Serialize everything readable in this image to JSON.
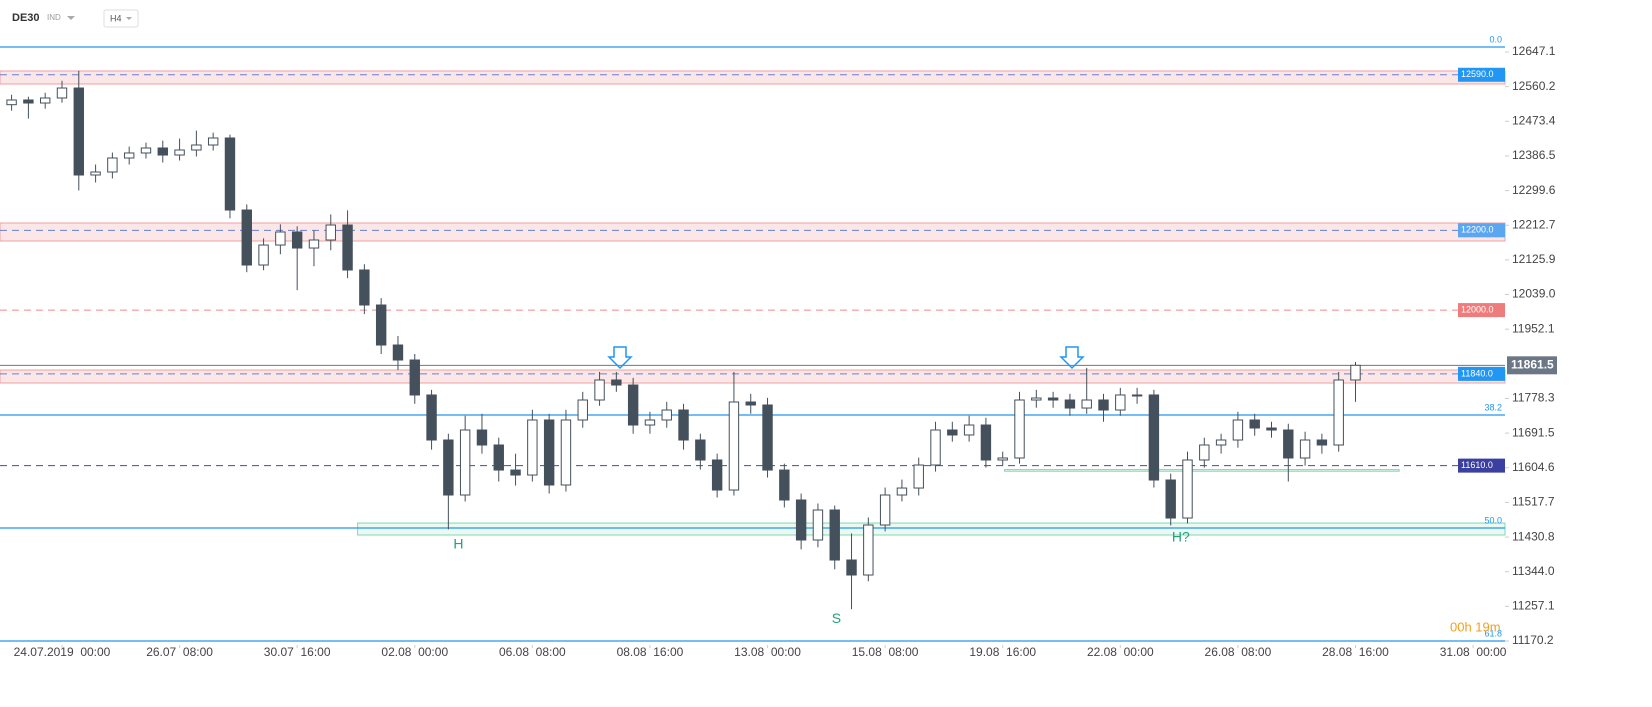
{
  "chart_data": {
    "type": "candlestick",
    "title": "DE30",
    "subtitle": "IND",
    "timeframe": "H4",
    "ylim": [
      11160.2,
      12777.5
    ],
    "yticks": [
      12647.1,
      12560.2,
      12473.4,
      12386.5,
      12299.6,
      12212.7,
      12125.9,
      {
        "value": 12039,
        "label": "12039.0"
      },
      11952.1,
      11778.3,
      11691.5,
      11604.6,
      11517.7,
      11430.8,
      {
        "value": 11344,
        "label": "11344.0"
      },
      11257.1,
      11170.2
    ],
    "xlim": [
      -0.69,
      88.9
    ],
    "xticks": [
      {
        "value": 3,
        "label": "24.07.2019  00:00"
      },
      {
        "value": 10,
        "label": "26.07  08:00"
      },
      {
        "value": 17,
        "label": "30.07  16:00"
      },
      {
        "value": 24,
        "label": "02.08  00:00"
      },
      {
        "value": 31,
        "label": "06.08  08:00"
      },
      {
        "value": 38,
        "label": "08.08  16:00"
      },
      {
        "value": 45,
        "label": "13.08  00:00"
      },
      {
        "value": 52,
        "label": "15.08  08:00"
      },
      {
        "value": 59,
        "label": "19.08  16:00"
      },
      {
        "value": 66,
        "label": "22.08  00:00"
      },
      {
        "value": 73,
        "label": "26.08  08:00"
      },
      {
        "value": 80,
        "label": "28.08  16:00"
      },
      {
        "value": 87,
        "label": "31.08  00:00"
      }
    ],
    "up_color": "#ffffff",
    "down_color": "#44505b",
    "ohlc": [
      [
        12515,
        12540,
        12500,
        12526.8
      ],
      [
        12526.8,
        12535,
        12480,
        12519.2
      ],
      [
        12519.2,
        12545,
        12505,
        12531.8
      ],
      [
        12531.8,
        12575,
        12520,
        12556.8
      ],
      [
        12556.8,
        12600,
        12300,
        12338.7
      ],
      [
        12338.7,
        12365,
        12320,
        12346.2
      ],
      [
        12346.2,
        12395,
        12330,
        12381.3
      ],
      [
        12381.3,
        12410,
        12365,
        12393.9
      ],
      [
        12393.9,
        12420,
        12380,
        12406.4
      ],
      [
        12406.4,
        12425,
        12370,
        12388.8
      ],
      [
        12388.8,
        12430,
        12375,
        12401.4
      ],
      [
        12401.4,
        12450,
        12385,
        12413.9
      ],
      [
        12413.9,
        12445,
        12400,
        12431.5
      ],
      [
        12431.5,
        12440,
        12230,
        12250.9
      ],
      [
        12250.9,
        12265,
        12095,
        12113.0
      ],
      [
        12113.0,
        12180,
        12100,
        12163.1
      ],
      [
        12163.1,
        12215,
        12140,
        12195.8
      ],
      [
        12195.8,
        12210,
        12050,
        12155.6
      ],
      [
        12155.6,
        12200,
        12110,
        12175.7
      ],
      [
        12175.7,
        12240,
        12150,
        12213.3
      ],
      [
        12213.3,
        12250,
        12080,
        12100.5
      ],
      [
        12100.5,
        12115,
        11990,
        12012.7
      ],
      [
        12012.7,
        12030,
        11890,
        11912.4
      ],
      [
        11912.4,
        11935,
        11850,
        11874.8
      ],
      [
        11874.8,
        11890,
        11765,
        11787.1
      ],
      [
        11787.1,
        11800,
        11650,
        11674.2
      ],
      [
        11674.2,
        11690,
        11450,
        11536.3
      ],
      [
        11536.3,
        11735,
        11520,
        11699.3
      ],
      [
        11699.3,
        11740,
        11640,
        11661.7
      ],
      [
        11661.7,
        11680,
        11570,
        11598.9
      ],
      [
        11598.9,
        11640,
        11560,
        11586.4
      ],
      [
        11586.4,
        11750,
        11570,
        11724.4
      ],
      [
        11724.4,
        11740,
        11540,
        11561.4
      ],
      [
        11561.4,
        11750,
        11545,
        11724.4
      ],
      [
        11724.4,
        11795,
        11705,
        11774.5
      ],
      [
        11774.5,
        11845,
        11760,
        11824.7
      ],
      [
        11824.7,
        11845,
        11795,
        11812.1
      ],
      [
        11812.1,
        11830,
        11690,
        11711.8
      ],
      [
        11711.8,
        11745,
        11690,
        11724.4
      ],
      [
        11724.4,
        11770,
        11705,
        11749.4
      ],
      [
        11749.4,
        11765,
        11650,
        11674.2
      ],
      [
        11674.2,
        11690,
        11600,
        11624.1
      ],
      [
        11624.1,
        11640,
        11530,
        11548.8
      ],
      [
        11548.8,
        11845,
        11535,
        11769.5
      ],
      [
        11769.5,
        11790,
        11740,
        11762.0
      ],
      [
        11762.0,
        11780,
        11580,
        11598.9
      ],
      [
        11598.9,
        11615,
        11505,
        11523.8
      ],
      [
        11523.8,
        11540,
        11400,
        11423.5
      ],
      [
        11423.5,
        11515,
        11405,
        11498.7
      ],
      [
        11498.7,
        11510,
        11350,
        11373.3
      ],
      [
        11373.3,
        11440,
        11250,
        11335.7
      ],
      [
        11335.7,
        11480,
        11320,
        11461.1
      ],
      [
        11461.1,
        11555,
        11445,
        11536.3
      ],
      [
        11536.3,
        11575,
        11520,
        11553.8
      ],
      [
        11553.8,
        11630,
        11535,
        11611.5
      ],
      [
        11611.5,
        11720,
        11595,
        11699.3
      ],
      [
        11699.3,
        11720,
        11670,
        11686.8
      ],
      [
        11686.8,
        11735,
        11670,
        11711.8
      ],
      [
        11711.8,
        11730,
        11605,
        11624.1
      ],
      [
        11624.1,
        11645,
        11610,
        11629.1
      ],
      [
        11629.1,
        11795,
        11615,
        11774.5
      ],
      [
        11774.5,
        11800,
        11755,
        11779.5
      ],
      [
        11779.5,
        11795,
        11755,
        11774.5
      ],
      [
        11774.5,
        11790,
        11735,
        11754.4
      ],
      [
        11754.4,
        11855,
        11740,
        11774.5
      ],
      [
        11774.5,
        11790,
        11720,
        11749.4
      ],
      [
        11749.4,
        11805,
        11735,
        11787.1
      ],
      [
        11787.1,
        11805,
        11765,
        11787.1
      ],
      [
        11787.1,
        11800,
        11555,
        11573.9
      ],
      [
        11573.9,
        11590,
        11460,
        11478.6
      ],
      [
        11478.6,
        11645,
        11465,
        11624.1
      ],
      [
        11624.1,
        11680,
        11605,
        11661.7
      ],
      [
        11661.7,
        11690,
        11640,
        11674.2
      ],
      [
        11674.2,
        11745,
        11655,
        11724.4
      ],
      [
        11724.4,
        11740,
        11685,
        11704.3
      ],
      [
        11704.3,
        11720,
        11680,
        11699.3
      ],
      [
        11699.3,
        11715,
        11570,
        11629.1
      ],
      [
        11629.1,
        11695,
        11610,
        11674.2
      ],
      [
        11674.2,
        11690,
        11640,
        11661.7
      ],
      [
        11661.7,
        11845,
        11645,
        11824.7
      ],
      [
        11824.7,
        11870,
        11770,
        11861.5
      ]
    ],
    "current_price": {
      "value": 11861.5,
      "color": "#6b7785"
    },
    "levels": [
      {
        "value": 12590,
        "label": "12590.0",
        "color": "#2196f3",
        "line_color": "#6a7fd0",
        "zone": [
          12566.9,
          12599.5
        ]
      },
      {
        "value": 12200,
        "label": "12200.0",
        "color": "#5aa6f0",
        "line_color": "#6a7fd0",
        "zone": [
          12173.2,
          12218.3
        ]
      },
      {
        "value": 12000,
        "label": "12000.0",
        "color": "#ef7c7c",
        "line_color": "#ef8a8a"
      },
      {
        "value": 11840,
        "label": "11840.0",
        "color": "#2196f3",
        "line_color": "#6a7fd0",
        "zone": [
          11817.1,
          11849.7
        ]
      },
      {
        "value": 11610,
        "label": "11610.0",
        "color": "#3a3fa0",
        "line_color": "#3f4fa0"
      }
    ],
    "fib_levels": [
      {
        "label": "0.0",
        "value": 12659.6
      },
      {
        "label": "38.2",
        "value": 11736.9
      },
      {
        "label": "50.0",
        "value": 11453.5
      },
      {
        "label": "61.8",
        "value": 11170.2
      }
    ],
    "fib_color": "#2196f3",
    "zones": [
      {
        "x_start": 20.6,
        "x_end": 88.9,
        "range": [
          11436,
          11466
        ],
        "color": "#7fd8b0"
      },
      {
        "x_start": 59.1,
        "x_end": 82.6,
        "range": [
          11596,
          11600
        ],
        "color": "#7fd8b0"
      }
    ],
    "annotations": [
      {
        "text": "H",
        "x": 26.6,
        "value": 11410.9
      },
      {
        "text": "S",
        "x": 49.1,
        "value": 11225
      },
      {
        "text": "H?",
        "x": 69.6,
        "value": 11428.5
      }
    ],
    "annotation_color": "#26a17b",
    "timer": "00h 19m",
    "timer_color": "#f0a020"
  }
}
